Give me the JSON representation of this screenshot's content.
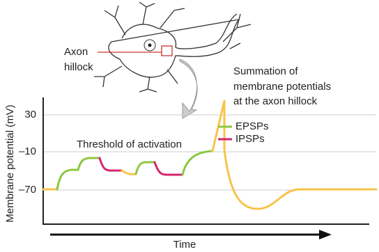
{
  "neuron": {
    "label_lines": [
      "Axon",
      "hillock"
    ]
  },
  "summation_lines": [
    "Summation of",
    "membrane potentials",
    "at the axon hillock"
  ],
  "threshold_label": "Threshold of activation",
  "y_axis": {
    "label": "Membrane potential (mV)",
    "ticks": [
      "30",
      "–10",
      "–70"
    ]
  },
  "x_axis": {
    "label": "Time"
  },
  "legend": [
    "EPSPs",
    "IPSPs"
  ]
}
